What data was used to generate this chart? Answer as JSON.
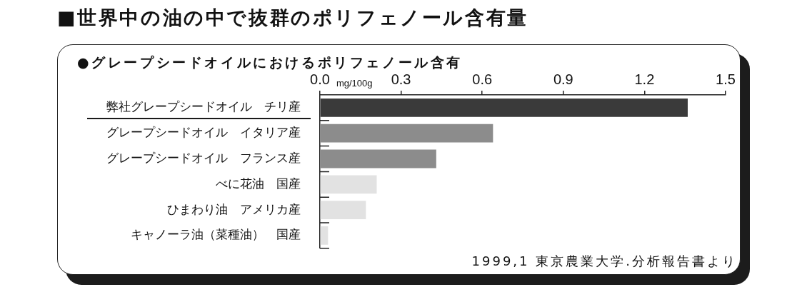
{
  "chart_data": {
    "type": "bar",
    "orientation": "horizontal",
    "title": "■世界中の油の中で抜群のポリフェノール含有量",
    "subtitle": "●グレープシードオイルにおけるポリフェノール含有",
    "xlabel": "mg/100g",
    "categories": [
      "弊社グレープシードオイル　チリ産",
      "グレープシードオイル　イタリア産",
      "グレープシードオイル　フランス産",
      "べに花油　国産",
      "ひまわり油　アメリカ産",
      "キャノーラ油（菜種油）　国産"
    ],
    "values": [
      1.36,
      0.64,
      0.43,
      0.21,
      0.17,
      0.03
    ],
    "colors": [
      "#3a3a3a",
      "#8c8c8c",
      "#8c8c8c",
      "#e2e2e2",
      "#e2e2e2",
      "#e2e2e2"
    ],
    "xlim": [
      0,
      1.5
    ],
    "xticks": [
      {
        "value": 0,
        "label": "0.0"
      },
      0.3,
      0.6,
      0.9,
      1.2,
      1.5
    ],
    "annotations": [
      "1999,1 東京農業大学.分析報告書より"
    ]
  }
}
